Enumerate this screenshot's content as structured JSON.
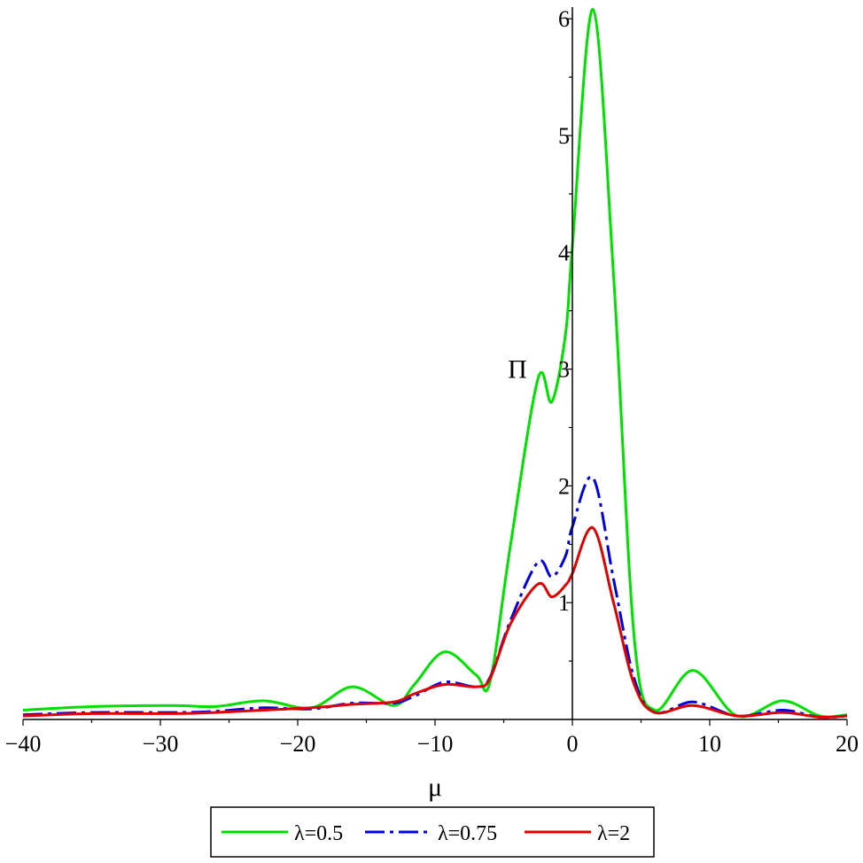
{
  "chart_data": {
    "type": "line",
    "xlabel": "μ",
    "ylabel": "Π",
    "xlim": [
      -40,
      20
    ],
    "ylim": [
      0,
      6.1
    ],
    "grid": false,
    "legend_position": "bottom",
    "x_ticks": [
      -40,
      -30,
      -20,
      -10,
      0,
      10,
      20
    ],
    "x_tick_labels": [
      "−40",
      "−30",
      "−20",
      "−10",
      "0",
      "10",
      "20"
    ],
    "y_ticks": [
      1,
      2,
      3,
      4,
      5,
      6
    ],
    "y_tick_labels": [
      "1",
      "2",
      "3",
      "4",
      "5",
      "6"
    ],
    "x": [
      -40,
      -35,
      -29,
      -26,
      -22.5,
      -19,
      -16,
      -13,
      -11.5,
      -9.3,
      -7,
      -6,
      -4.5,
      -2.5,
      -1.5,
      -0.5,
      0,
      1.5,
      3,
      4.5,
      6,
      8.8,
      12,
      15.3,
      18,
      20
    ],
    "series": [
      {
        "name": "λ=0.5",
        "color": "#00e000",
        "dash": "solid",
        "values": [
          0.08,
          0.11,
          0.12,
          0.11,
          0.16,
          0.1,
          0.28,
          0.12,
          0.3,
          0.58,
          0.38,
          0.32,
          1.5,
          2.92,
          2.72,
          3.3,
          4.05,
          6.08,
          3.8,
          0.7,
          0.08,
          0.42,
          0.03,
          0.16,
          0.03,
          0.04
        ]
      },
      {
        "name": "λ=0.75",
        "color": "#0000e0",
        "dash": "dashed",
        "values": [
          0.04,
          0.06,
          0.06,
          0.07,
          0.1,
          0.09,
          0.14,
          0.14,
          0.2,
          0.32,
          0.28,
          0.36,
          0.85,
          1.35,
          1.22,
          1.4,
          1.65,
          2.07,
          1.2,
          0.35,
          0.06,
          0.15,
          0.03,
          0.08,
          0.02,
          0.03
        ]
      },
      {
        "name": "λ=2",
        "color": "#e00000",
        "dash": "solid",
        "values": [
          0.03,
          0.05,
          0.05,
          0.06,
          0.08,
          0.1,
          0.13,
          0.15,
          0.22,
          0.3,
          0.28,
          0.35,
          0.82,
          1.16,
          1.05,
          1.15,
          1.25,
          1.64,
          1.0,
          0.3,
          0.06,
          0.12,
          0.03,
          0.06,
          0.02,
          0.03
        ]
      }
    ]
  }
}
